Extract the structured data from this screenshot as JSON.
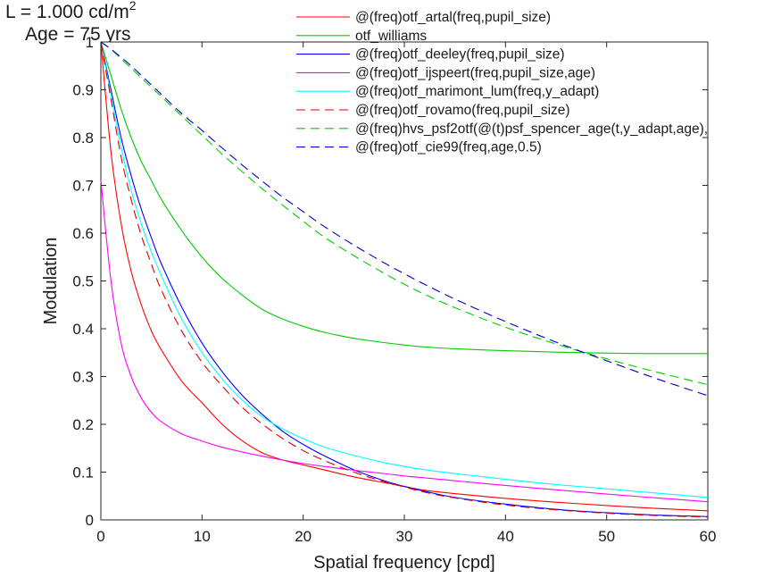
{
  "chart_data": {
    "type": "line",
    "title_lines": [
      "L = 1.000 cd/m",
      "Age = 75 yrs"
    ],
    "title_superscript": "2",
    "xlabel": "Spatial frequency [cpd]",
    "ylabel": "Modulation",
    "xlim": [
      0,
      60
    ],
    "ylim": [
      0,
      1
    ],
    "x_ticks": [
      "0",
      "10",
      "20",
      "30",
      "40",
      "50",
      "60"
    ],
    "y_ticks": [
      "0",
      "0.1",
      "0.2",
      "0.3",
      "0.4",
      "0.5",
      "0.6",
      "0.7",
      "0.8",
      "0.9",
      "1"
    ],
    "grid": false,
    "legend_position": "top-right",
    "x": [
      0,
      1,
      2,
      3,
      4,
      5,
      6,
      8,
      10,
      12,
      14,
      16,
      18,
      20,
      22,
      25,
      28,
      30,
      32,
      35,
      40,
      45,
      50,
      55,
      60
    ],
    "series": [
      {
        "name": "@(freq)otf_artal(freq,pupil_size)",
        "color": "#ff0000",
        "dash": "solid",
        "values": [
          1.0,
          0.77,
          0.62,
          0.52,
          0.45,
          0.395,
          0.355,
          0.29,
          0.245,
          0.2,
          0.165,
          0.14,
          0.125,
          0.115,
          0.105,
          0.09,
          0.078,
          0.07,
          0.062,
          0.055,
          0.045,
          0.037,
          0.03,
          0.024,
          0.019
        ]
      },
      {
        "name": "otf_williams",
        "color": "#00cc00",
        "dash": "solid",
        "values": [
          1.0,
          0.93,
          0.86,
          0.8,
          0.75,
          0.71,
          0.67,
          0.605,
          0.55,
          0.505,
          0.47,
          0.44,
          0.42,
          0.405,
          0.393,
          0.38,
          0.371,
          0.366,
          0.362,
          0.358,
          0.354,
          0.351,
          0.349,
          0.348,
          0.348
        ]
      },
      {
        "name": "@(freq)otf_deeley(freq,pupil_size)",
        "color": "#0000ff",
        "dash": "solid",
        "values": [
          1.0,
          0.9,
          0.8,
          0.72,
          0.65,
          0.59,
          0.535,
          0.445,
          0.37,
          0.31,
          0.26,
          0.22,
          0.185,
          0.158,
          0.135,
          0.105,
          0.082,
          0.07,
          0.06,
          0.047,
          0.033,
          0.022,
          0.015,
          0.01,
          0.007
        ]
      },
      {
        "name": "@(freq)otf_ijspeert(freq,pupil_size,age)",
        "color": "#ff00ff",
        "dash": "solid",
        "values": [
          0.71,
          0.5,
          0.37,
          0.3,
          0.255,
          0.225,
          0.205,
          0.18,
          0.165,
          0.152,
          0.142,
          0.133,
          0.125,
          0.118,
          0.112,
          0.104,
          0.097,
          0.092,
          0.088,
          0.082,
          0.072,
          0.063,
          0.054,
          0.046,
          0.038
        ]
      },
      {
        "name": "@(freq)otf_marimont_lum(freq,y_adapt)",
        "color": "#00ffff",
        "dash": "solid",
        "values": [
          1.0,
          0.89,
          0.78,
          0.69,
          0.62,
          0.56,
          0.51,
          0.42,
          0.35,
          0.295,
          0.25,
          0.215,
          0.19,
          0.17,
          0.153,
          0.135,
          0.12,
          0.112,
          0.105,
          0.097,
          0.085,
          0.074,
          0.065,
          0.056,
          0.047
        ]
      },
      {
        "name": "@(freq)otf_rovamo(freq,pupil_size)",
        "color": "#dd0000",
        "dash": "dashed",
        "values": [
          1.0,
          0.88,
          0.76,
          0.67,
          0.595,
          0.535,
          0.48,
          0.395,
          0.33,
          0.28,
          0.235,
          0.2,
          0.17,
          0.145,
          0.125,
          0.1,
          0.08,
          0.069,
          0.058,
          0.046,
          0.031,
          0.021,
          0.014,
          0.009,
          0.006
        ]
      },
      {
        "name": "@(freq)hvs_psf2otf(@(t)psf_spencer_age(t,y_adapt,age),",
        "color": "#00cc00",
        "dash": "dashed",
        "values": [
          1.0,
          0.985,
          0.965,
          0.945,
          0.925,
          0.905,
          0.885,
          0.845,
          0.805,
          0.765,
          0.728,
          0.692,
          0.658,
          0.625,
          0.593,
          0.553,
          0.516,
          0.493,
          0.472,
          0.444,
          0.403,
          0.368,
          0.337,
          0.309,
          0.283
        ]
      },
      {
        "name": "@(freq)otf_cie99(freq,age,0.5)",
        "color": "#0000cc",
        "dash": "dashed",
        "values": [
          1.0,
          0.985,
          0.968,
          0.95,
          0.93,
          0.91,
          0.89,
          0.85,
          0.815,
          0.778,
          0.742,
          0.708,
          0.675,
          0.645,
          0.615,
          0.575,
          0.538,
          0.515,
          0.493,
          0.462,
          0.415,
          0.372,
          0.333,
          0.295,
          0.26
        ]
      }
    ]
  }
}
